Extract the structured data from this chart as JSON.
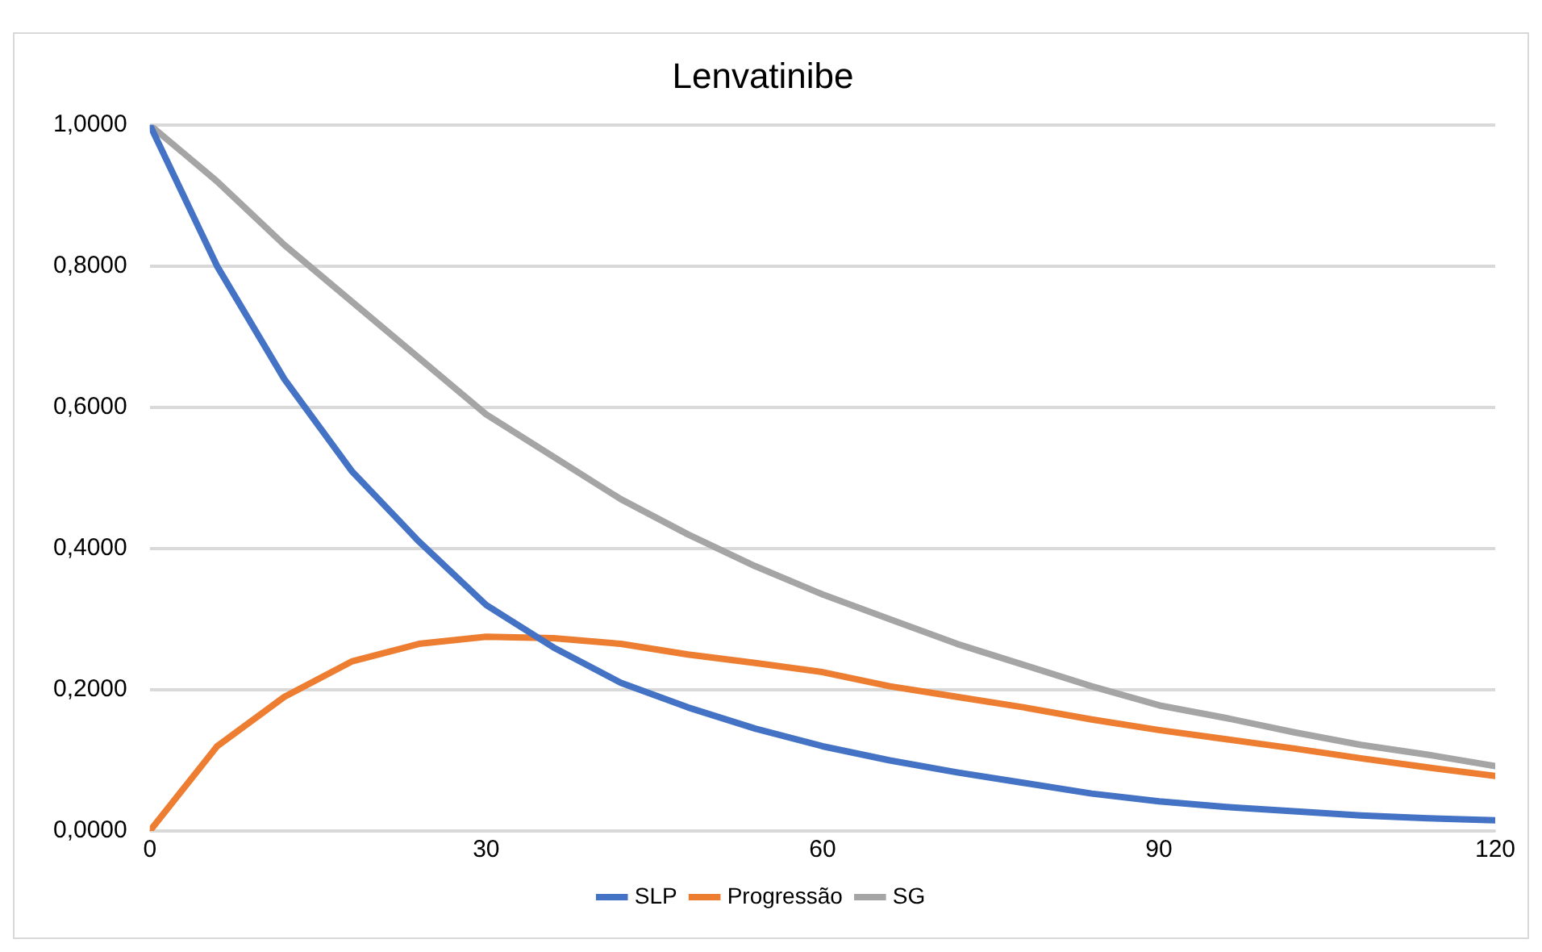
{
  "chart_data": {
    "type": "line",
    "title": "Lenvatinibe",
    "x": [
      0,
      3,
      6,
      12,
      18,
      24,
      30,
      36,
      42,
      48,
      54,
      60,
      66,
      72,
      78,
      84,
      90,
      96,
      102,
      108,
      114,
      120
    ],
    "series": [
      {
        "name": "SLP",
        "color": "#4472c4",
        "values": [
          1,
          0.9,
          0.8,
          0.64,
          0.51,
          0.41,
          0.32,
          0.26,
          0.21,
          0.175,
          0.145,
          0.12,
          0.1,
          0.083,
          0.068,
          0.053,
          0.042,
          0.034,
          0.028,
          0.022,
          0.018,
          0.015
        ]
      },
      {
        "name": "Progressão",
        "color": "#ed7d31",
        "values": [
          0,
          0.06,
          0.12,
          0.19,
          0.24,
          0.265,
          0.275,
          0.273,
          0.265,
          0.25,
          0.238,
          0.225,
          0.205,
          0.19,
          0.175,
          0.158,
          0.143,
          0.13,
          0.117,
          0.103,
          0.09,
          0.078
        ]
      },
      {
        "name": "SG",
        "color": "#a5a5a5",
        "values": [
          1,
          0.96,
          0.92,
          0.83,
          0.75,
          0.67,
          0.59,
          0.53,
          0.47,
          0.42,
          0.375,
          0.335,
          0.3,
          0.265,
          0.235,
          0.205,
          0.178,
          0.16,
          0.14,
          0.122,
          0.108,
          0.092
        ]
      }
    ],
    "xlim": [
      0,
      120
    ],
    "xticks": [
      0,
      30,
      60,
      90,
      120
    ],
    "ylim": [
      0,
      1
    ],
    "yticks": [
      {
        "value": 0,
        "label": "0,0000"
      },
      {
        "value": 0.2,
        "label": "0,2000"
      },
      {
        "value": 0.4,
        "label": "0,4000"
      },
      {
        "value": 0.6,
        "label": "0,6000"
      },
      {
        "value": 0.8,
        "label": "0,8000"
      },
      {
        "value": 1,
        "label": "1,0000"
      }
    ],
    "grid": "y",
    "legend": "bottom",
    "marker": "none",
    "line_style": "solid"
  }
}
